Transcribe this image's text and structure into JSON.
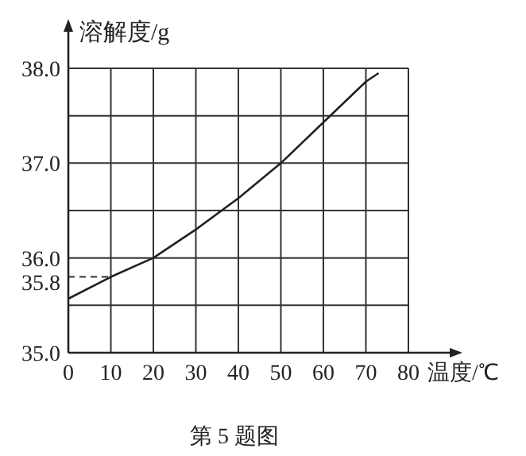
{
  "chart_data": {
    "type": "line",
    "xlabel": "温度/℃",
    "ylabel": "溶解度/g",
    "annotations": [
      "第 5 题图"
    ],
    "series": [
      {
        "color": "#222222",
        "x": [
          0,
          10,
          20,
          30,
          40,
          50,
          60,
          70,
          73
        ],
        "values": [
          35.57,
          35.8,
          36.0,
          36.3,
          36.63,
          37.0,
          37.43,
          37.86,
          37.95
        ]
      }
    ],
    "xlim": [
      0,
      80
    ],
    "xticks": [
      0,
      10,
      20,
      30,
      40,
      50,
      60,
      70,
      80
    ],
    "ylim": [
      35,
      38
    ],
    "yticks": [
      {
        "value": 35,
        "label": "35.0"
      },
      {
        "value": 35.5,
        "label": null
      },
      {
        "value": 36,
        "label": "36.0"
      },
      {
        "value": 36.5,
        "label": null
      },
      {
        "value": 37,
        "label": "37.0"
      },
      {
        "value": 37.5,
        "label": null
      },
      {
        "value": 38,
        "label": "38.0"
      }
    ],
    "ref_lines": [
      {
        "axis": "y",
        "value": 35.8,
        "label": "35.8",
        "line_style": "dashed"
      }
    ],
    "grid": true,
    "marker": "none",
    "line_style": "solid"
  }
}
